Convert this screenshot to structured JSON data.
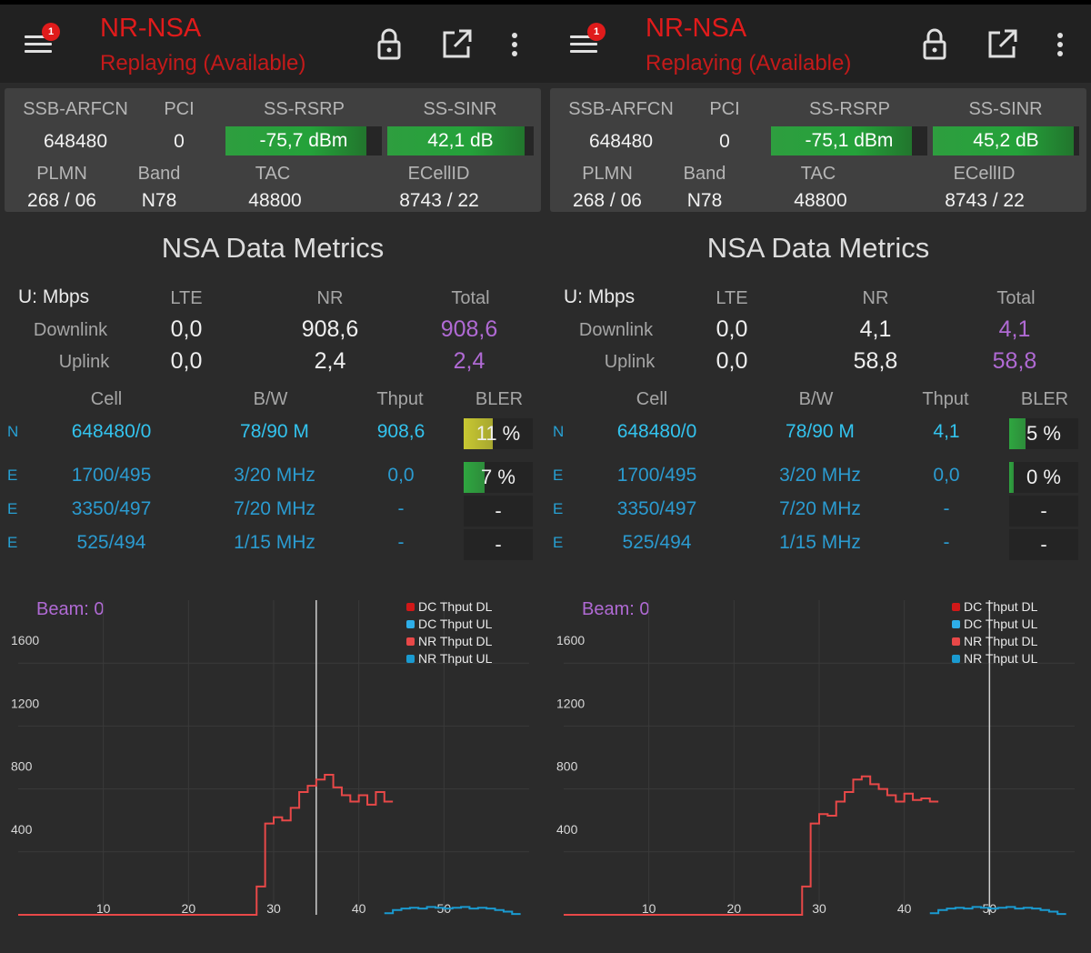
{
  "panels": [
    {
      "title": "NR-NSA",
      "subtitle": "Replaying (Available)",
      "badge": "1",
      "cell": {
        "labels": {
          "arfcn": "SSB-ARFCN",
          "pci": "PCI",
          "rsrp": "SS-RSRP",
          "sinr": "SS-SINR",
          "plmn": "PLMN",
          "band": "Band",
          "tac": "TAC",
          "ecellid": "ECellID"
        },
        "arfcn": "648480",
        "pci": "0",
        "rsrp": "-75,7 dBm",
        "rsrp_level": 0.9,
        "sinr": "42,1 dB",
        "sinr_level": 0.94,
        "plmn": "268 / 06",
        "band": "N78",
        "tac": "48800",
        "ecellid": "8743 / 22"
      },
      "metrics": {
        "title": "NSA Data Metrics",
        "unit": "U: Mbps",
        "headers": [
          "LTE",
          "NR",
          "Total"
        ],
        "rows": [
          {
            "label": "Downlink",
            "lte": "0,0",
            "nr": "908,6",
            "total": "908,6"
          },
          {
            "label": "Uplink",
            "lte": "0,0",
            "nr": "2,4",
            "total": "2,4"
          }
        ]
      },
      "cells_table": {
        "headers": [
          "Cell",
          "B/W",
          "Thput",
          "BLER"
        ],
        "rows": [
          {
            "type": "N",
            "cell": "648480/0",
            "bw": "78/90 M",
            "thput": "908,6",
            "bler": "11 %",
            "bler_level": 0.42,
            "bler_color": "#c8c832"
          },
          {
            "type": "E",
            "cell": "1700/495",
            "bw": "3/20 MHz",
            "thput": "0,0",
            "bler": "7 %",
            "bler_level": 0.3,
            "bler_color": "#2fa640"
          },
          {
            "type": "E",
            "cell": "3350/497",
            "bw": "7/20 MHz",
            "thput": "-",
            "bler": "-",
            "bler_level": 0,
            "bler_color": "#2fa640"
          },
          {
            "type": "E",
            "cell": "525/494",
            "bw": "1/15 MHz",
            "thput": "-",
            "bler": "-",
            "bler_level": 0,
            "bler_color": "#2fa640"
          }
        ]
      },
      "chart_data": {
        "type": "line",
        "annotation": "Beam: 0",
        "x_ticks": [
          10,
          20,
          30,
          40,
          50
        ],
        "y_ticks": [
          400,
          800,
          1200,
          1600
        ],
        "xlim": [
          0,
          60
        ],
        "ylim": [
          0,
          2000
        ],
        "cursor_x": 35,
        "legend": [
          {
            "name": "DC Thput DL",
            "color": "#d01818"
          },
          {
            "name": "DC Thput UL",
            "color": "#2eaee8"
          },
          {
            "name": "NR Thput DL",
            "color": "#e84848"
          },
          {
            "name": "NR Thput UL",
            "color": "#1a9ad0"
          }
        ],
        "series": [
          {
            "name": "NR Thput DL",
            "x": [
              0,
              1,
              2,
              3,
              4,
              5,
              6,
              7,
              8,
              9,
              10,
              11,
              12,
              13,
              14,
              15,
              16,
              17,
              18,
              19,
              20,
              21,
              22,
              23,
              24,
              25,
              26,
              27,
              28,
              29,
              30,
              31,
              32,
              33,
              34,
              35,
              36,
              37,
              38,
              39,
              40,
              41,
              42,
              43
            ],
            "y": [
              0,
              0,
              0,
              0,
              0,
              0,
              0,
              0,
              0,
              0,
              0,
              0,
              0,
              0,
              0,
              0,
              0,
              0,
              0,
              0,
              0,
              0,
              0,
              0,
              0,
              0,
              0,
              0,
              180,
              580,
              620,
              600,
              680,
              780,
              820,
              860,
              890,
              810,
              760,
              720,
              760,
              700,
              780,
              720
            ]
          },
          {
            "name": "NR Thput UL",
            "x": [
              43,
              44,
              45,
              46,
              47,
              48,
              49,
              50,
              51,
              52,
              53,
              54,
              55,
              56,
              57,
              58
            ],
            "y": [
              10,
              30,
              40,
              45,
              40,
              50,
              45,
              40,
              45,
              50,
              40,
              45,
              40,
              30,
              20,
              5
            ]
          }
        ]
      }
    },
    {
      "title": "NR-NSA",
      "subtitle": "Replaying (Available)",
      "badge": "1",
      "cell": {
        "labels": {
          "arfcn": "SSB-ARFCN",
          "pci": "PCI",
          "rsrp": "SS-RSRP",
          "sinr": "SS-SINR",
          "plmn": "PLMN",
          "band": "Band",
          "tac": "TAC",
          "ecellid": "ECellID"
        },
        "arfcn": "648480",
        "pci": "0",
        "rsrp": "-75,1 dBm",
        "rsrp_level": 0.9,
        "sinr": "45,2 dB",
        "sinr_level": 0.96,
        "plmn": "268 / 06",
        "band": "N78",
        "tac": "48800",
        "ecellid": "8743 / 22"
      },
      "metrics": {
        "title": "NSA Data Metrics",
        "unit": "U: Mbps",
        "headers": [
          "LTE",
          "NR",
          "Total"
        ],
        "rows": [
          {
            "label": "Downlink",
            "lte": "0,0",
            "nr": "4,1",
            "total": "4,1"
          },
          {
            "label": "Uplink",
            "lte": "0,0",
            "nr": "58,8",
            "total": "58,8"
          }
        ]
      },
      "cells_table": {
        "headers": [
          "Cell",
          "B/W",
          "Thput",
          "BLER"
        ],
        "rows": [
          {
            "type": "N",
            "cell": "648480/0",
            "bw": "78/90 M",
            "thput": "4,1",
            "bler": "5 %",
            "bler_level": 0.24,
            "bler_color": "#2fa640"
          },
          {
            "type": "E",
            "cell": "1700/495",
            "bw": "3/20 MHz",
            "thput": "0,0",
            "bler": "0 %",
            "bler_level": 0.06,
            "bler_color": "#2fa640"
          },
          {
            "type": "E",
            "cell": "3350/497",
            "bw": "7/20 MHz",
            "thput": "-",
            "bler": "-",
            "bler_level": 0,
            "bler_color": "#2fa640"
          },
          {
            "type": "E",
            "cell": "525/494",
            "bw": "1/15 MHz",
            "thput": "-",
            "bler": "-",
            "bler_level": 0,
            "bler_color": "#2fa640"
          }
        ]
      },
      "chart_data": {
        "type": "line",
        "annotation": "Beam: 0",
        "x_ticks": [
          10,
          20,
          30,
          40,
          50
        ],
        "y_ticks": [
          400,
          800,
          1200,
          1600
        ],
        "xlim": [
          0,
          60
        ],
        "ylim": [
          0,
          2000
        ],
        "cursor_x": 50,
        "legend": [
          {
            "name": "DC Thput DL",
            "color": "#d01818"
          },
          {
            "name": "DC Thput UL",
            "color": "#2eaee8"
          },
          {
            "name": "NR Thput DL",
            "color": "#e84848"
          },
          {
            "name": "NR Thput UL",
            "color": "#1a9ad0"
          }
        ],
        "series": [
          {
            "name": "NR Thput DL",
            "x": [
              0,
              1,
              2,
              3,
              4,
              5,
              6,
              7,
              8,
              9,
              10,
              11,
              12,
              13,
              14,
              15,
              16,
              17,
              18,
              19,
              20,
              21,
              22,
              23,
              24,
              25,
              26,
              27,
              28,
              29,
              30,
              31,
              32,
              33,
              34,
              35,
              36,
              37,
              38,
              39,
              40,
              41,
              42,
              43
            ],
            "y": [
              0,
              0,
              0,
              0,
              0,
              0,
              0,
              0,
              0,
              0,
              0,
              0,
              0,
              0,
              0,
              0,
              0,
              0,
              0,
              0,
              0,
              0,
              0,
              0,
              0,
              0,
              0,
              0,
              180,
              580,
              640,
              630,
              720,
              780,
              860,
              880,
              830,
              800,
              760,
              720,
              770,
              730,
              740,
              720
            ]
          },
          {
            "name": "NR Thput UL",
            "x": [
              43,
              44,
              45,
              46,
              47,
              48,
              49,
              50,
              51,
              52,
              53,
              54,
              55,
              56,
              57,
              58
            ],
            "y": [
              10,
              30,
              40,
              45,
              40,
              50,
              45,
              40,
              45,
              50,
              40,
              45,
              40,
              30,
              20,
              5
            ]
          }
        ]
      }
    }
  ]
}
